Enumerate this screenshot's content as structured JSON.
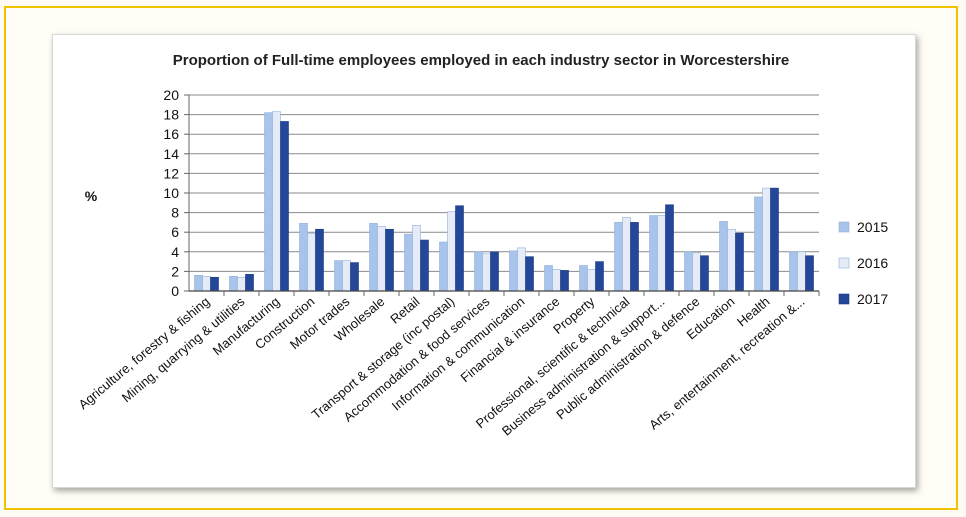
{
  "chart_data": {
    "type": "bar",
    "title": "Proportion of Full-time employees employed in each industry sector in Worcestershire",
    "ylabel": "%",
    "xlabel": "",
    "ylim": [
      0,
      20
    ],
    "yticks": [
      0,
      2,
      4,
      6,
      8,
      10,
      12,
      14,
      16,
      18,
      20
    ],
    "grid": true,
    "legend_position": "right",
    "categories": [
      "Agriculture, forestry & fishing",
      "Mining, quarrying & utilities",
      "Manufacturing",
      "Construction",
      "Motor trades",
      "Wholesale",
      "Retail",
      "Transport & storage (inc postal)",
      "Accommodation & food services",
      "Information & communication",
      "Financial & insurance",
      "Property",
      "Professional, scientific & technical",
      "Business administration & support...",
      "Public administration & defence",
      "Education",
      "Health",
      "Arts, entertainment, recreation &..."
    ],
    "series": [
      {
        "name": "2015",
        "color": "#a9c4ea",
        "values": [
          1.6,
          1.5,
          18.2,
          6.9,
          3.1,
          6.9,
          5.8,
          5.0,
          4.0,
          4.1,
          2.6,
          2.6,
          7.0,
          7.7,
          4.0,
          7.1,
          9.6,
          4.0
        ]
      },
      {
        "name": "2016",
        "color": "#e6ecf7",
        "values": [
          1.5,
          1.4,
          18.3,
          5.9,
          3.1,
          6.6,
          6.7,
          8.1,
          3.8,
          4.4,
          2.2,
          2.2,
          7.5,
          7.7,
          3.9,
          6.3,
          10.5,
          4.0
        ]
      },
      {
        "name": "2017",
        "color": "#24479a",
        "values": [
          1.4,
          1.7,
          17.3,
          6.3,
          2.9,
          6.3,
          5.2,
          8.7,
          4.0,
          3.5,
          2.1,
          3.0,
          7.0,
          8.8,
          3.6,
          5.9,
          10.5,
          3.6
        ]
      }
    ]
  }
}
